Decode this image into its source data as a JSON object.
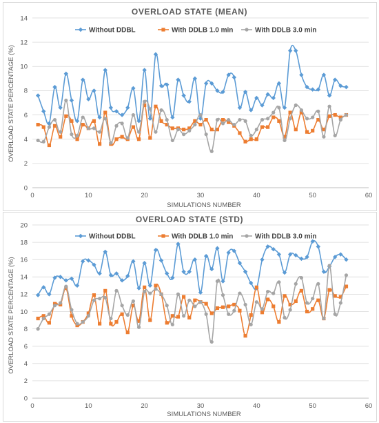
{
  "chart_data": [
    {
      "type": "line",
      "title": "OVERLOAD STATE (MEAN)",
      "xlabel": "SIMULATIONS NUMBER",
      "ylabel": "OVERLOAD STATE PERCENTAGE (%)",
      "xlim": [
        0,
        60
      ],
      "ylim": [
        0,
        14
      ],
      "xticks": [
        0,
        10,
        20,
        30,
        40,
        50,
        60
      ],
      "yticks": [
        0,
        2,
        4,
        6,
        8,
        10,
        12,
        14
      ],
      "legend_position": "top",
      "grid": "horizontal",
      "x": [
        1,
        2,
        3,
        4,
        5,
        6,
        7,
        8,
        9,
        10,
        11,
        12,
        13,
        14,
        15,
        16,
        17,
        18,
        19,
        20,
        21,
        22,
        23,
        24,
        25,
        26,
        27,
        28,
        29,
        30,
        31,
        32,
        33,
        34,
        35,
        36,
        37,
        38,
        39,
        40,
        41,
        42,
        43,
        44,
        45,
        46,
        47,
        48,
        49,
        50,
        51,
        52,
        53,
        54,
        55,
        56
      ],
      "series": [
        {
          "name": "Without DDBL",
          "color": "#5b9bd5",
          "marker": "diamond",
          "values": [
            7.6,
            6.3,
            5.3,
            8.3,
            6.6,
            9.4,
            7.2,
            5.5,
            8.9,
            7.3,
            8.0,
            5.8,
            9.7,
            6.6,
            6.3,
            6.0,
            6.6,
            8.2,
            5.5,
            9.7,
            5.7,
            11.0,
            8.4,
            8.5,
            5.8,
            8.9,
            7.6,
            7.1,
            9.0,
            5.7,
            8.6,
            8.6,
            8.0,
            7.9,
            9.3,
            9.1,
            6.6,
            7.9,
            6.4,
            7.4,
            6.8,
            7.7,
            7.4,
            8.6,
            6.6,
            11.3,
            11.3,
            9.3,
            8.3,
            8.1,
            8.1,
            9.3,
            7.6,
            8.9,
            8.4,
            8.3
          ]
        },
        {
          "name": "With DDLB 1.0 min",
          "color": "#ed7d31",
          "marker": "square",
          "values": [
            5.2,
            5.0,
            3.5,
            5.1,
            4.2,
            5.9,
            5.5,
            4.0,
            5.2,
            4.9,
            5.5,
            3.6,
            6.2,
            3.6,
            4.0,
            4.2,
            4.0,
            5.0,
            4.0,
            6.8,
            4.1,
            6.7,
            5.5,
            5.2,
            4.9,
            4.9,
            4.8,
            4.9,
            5.5,
            5.2,
            5.6,
            4.8,
            4.8,
            5.6,
            5.4,
            5.1,
            4.5,
            3.8,
            4.0,
            4.0,
            5.0,
            5.0,
            5.8,
            5.5,
            4.2,
            6.2,
            4.8,
            6.2,
            4.6,
            4.7,
            5.6,
            4.8,
            5.9,
            6.0,
            5.8,
            6.0
          ]
        },
        {
          "name": "With DDLB 3.0 min",
          "color": "#a5a5a5",
          "marker": "circle",
          "values": [
            3.9,
            3.8,
            5.0,
            5.6,
            4.6,
            7.2,
            4.4,
            4.3,
            5.8,
            4.9,
            4.9,
            4.6,
            5.7,
            3.7,
            5.1,
            5.3,
            4.1,
            6.0,
            4.6,
            7.1,
            6.5,
            4.6,
            6.4,
            5.6,
            3.9,
            4.8,
            4.4,
            4.7,
            5.2,
            6.0,
            4.4,
            3.0,
            5.6,
            5.3,
            5.6,
            5.2,
            5.6,
            5.5,
            4.3,
            4.8,
            5.6,
            5.7,
            6.2,
            6.6,
            3.9,
            5.7,
            6.8,
            6.4,
            5.7,
            5.8,
            6.3,
            4.2,
            6.7,
            4.3,
            5.6,
            6.0
          ]
        }
      ]
    },
    {
      "type": "line",
      "title": "OVERLOAD STATE (STD)",
      "xlabel": "SIMULATIONS NUMBER",
      "ylabel": "OVERLOAD STATE PERCENTAGE (%)",
      "xlim": [
        0,
        60
      ],
      "ylim": [
        0,
        20
      ],
      "xticks": [
        0,
        10,
        20,
        30,
        40,
        50,
        60
      ],
      "yticks": [
        0,
        2,
        4,
        6,
        8,
        10,
        12,
        14,
        16,
        18,
        20
      ],
      "legend_position": "top",
      "grid": "horizontal",
      "x": [
        1,
        2,
        3,
        4,
        5,
        6,
        7,
        8,
        9,
        10,
        11,
        12,
        13,
        14,
        15,
        16,
        17,
        18,
        19,
        20,
        21,
        22,
        23,
        24,
        25,
        26,
        27,
        28,
        29,
        30,
        31,
        32,
        33,
        34,
        35,
        36,
        37,
        38,
        39,
        40,
        41,
        42,
        43,
        44,
        45,
        46,
        47,
        48,
        49,
        50,
        51,
        52,
        53,
        54,
        55,
        56
      ],
      "series": [
        {
          "name": "Without DDBL",
          "color": "#5b9bd5",
          "marker": "diamond",
          "values": [
            11.9,
            12.8,
            12.0,
            13.9,
            14.0,
            13.6,
            13.8,
            13.0,
            15.8,
            15.9,
            15.4,
            14.4,
            16.9,
            14.2,
            14.4,
            13.6,
            14.1,
            15.8,
            12.7,
            15.6,
            13.0,
            17.1,
            15.9,
            14.4,
            13.9,
            17.8,
            14.6,
            14.6,
            16.0,
            12.2,
            16.4,
            14.9,
            17.3,
            13.5,
            16.8,
            17.0,
            15.6,
            14.6,
            13.3,
            12.7,
            16.0,
            17.5,
            17.2,
            16.6,
            14.5,
            16.6,
            16.5,
            16.1,
            16.3,
            18.1,
            17.5,
            14.6,
            15.2,
            16.3,
            16.6,
            16.0
          ]
        },
        {
          "name": "With DDLB 1.0 min",
          "color": "#ed7d31",
          "marker": "square",
          "values": [
            9.2,
            9.5,
            8.7,
            10.9,
            10.8,
            12.7,
            9.5,
            8.4,
            8.8,
            9.8,
            11.9,
            8.6,
            12.4,
            8.6,
            8.8,
            9.7,
            7.6,
            10.7,
            8.9,
            12.8,
            9.0,
            13.0,
            12.0,
            8.7,
            9.5,
            9.4,
            11.7,
            9.3,
            11.3,
            11.1,
            10.9,
            9.8,
            10.4,
            10.5,
            10.6,
            10.8,
            10.1,
            7.2,
            9.6,
            12.8,
            9.9,
            11.4,
            10.6,
            8.8,
            11.8,
            10.8,
            11.2,
            12.4,
            10.0,
            10.3,
            11.3,
            9.2,
            12.5,
            11.8,
            11.7,
            12.9
          ]
        },
        {
          "name": "With DDLB 3.0 min",
          "color": "#a5a5a5",
          "marker": "circle",
          "values": [
            8.0,
            9.2,
            9.7,
            10.7,
            11.0,
            12.9,
            10.2,
            8.6,
            8.8,
            9.5,
            11.3,
            11.5,
            11.6,
            9.2,
            12.4,
            10.7,
            9.6,
            11.2,
            8.2,
            12.3,
            12.1,
            12.6,
            12.0,
            10.7,
            8.5,
            12.0,
            9.5,
            11.3,
            10.6,
            11.1,
            9.7,
            6.5,
            13.5,
            11.9,
            9.7,
            10.1,
            12.1,
            10.8,
            8.5,
            11.1,
            10.3,
            12.3,
            12.1,
            13.4,
            9.3,
            10.2,
            13.2,
            13.9,
            11.0,
            11.5,
            13.2,
            9.2,
            15.3,
            9.7,
            11.0,
            14.2
          ]
        }
      ]
    }
  ]
}
